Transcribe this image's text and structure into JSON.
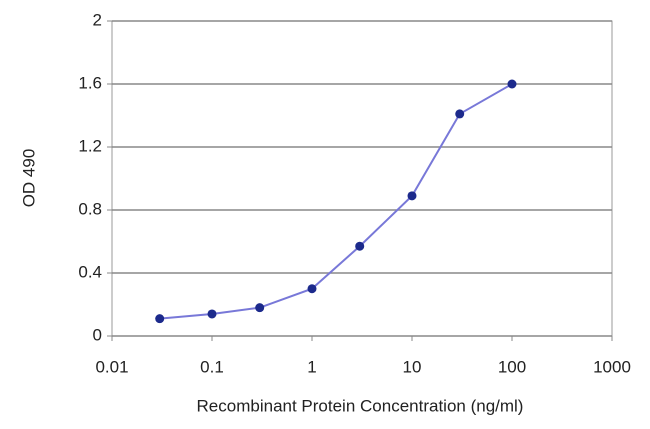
{
  "chart_data": {
    "type": "line",
    "x_label": "Recombinant Protein Concentration (ng/ml)",
    "y_label": "OD 490",
    "x": [
      0.03,
      0.1,
      0.3,
      1,
      3,
      10,
      30,
      100
    ],
    "series": [
      {
        "color": "#7878d8",
        "marker_color": "#1c2a8c",
        "values": [
          0.11,
          0.14,
          0.18,
          0.3,
          0.57,
          0.89,
          1.41,
          1.6
        ]
      }
    ],
    "xscale": "log",
    "xlim": [
      0.01,
      1000
    ],
    "xticks": [
      0.01,
      0.1,
      1,
      10,
      100,
      1000
    ],
    "ylim": [
      0,
      2
    ],
    "yticks": [
      0,
      0.4,
      0.8,
      1.2,
      1.6,
      2
    ],
    "grid": true
  }
}
